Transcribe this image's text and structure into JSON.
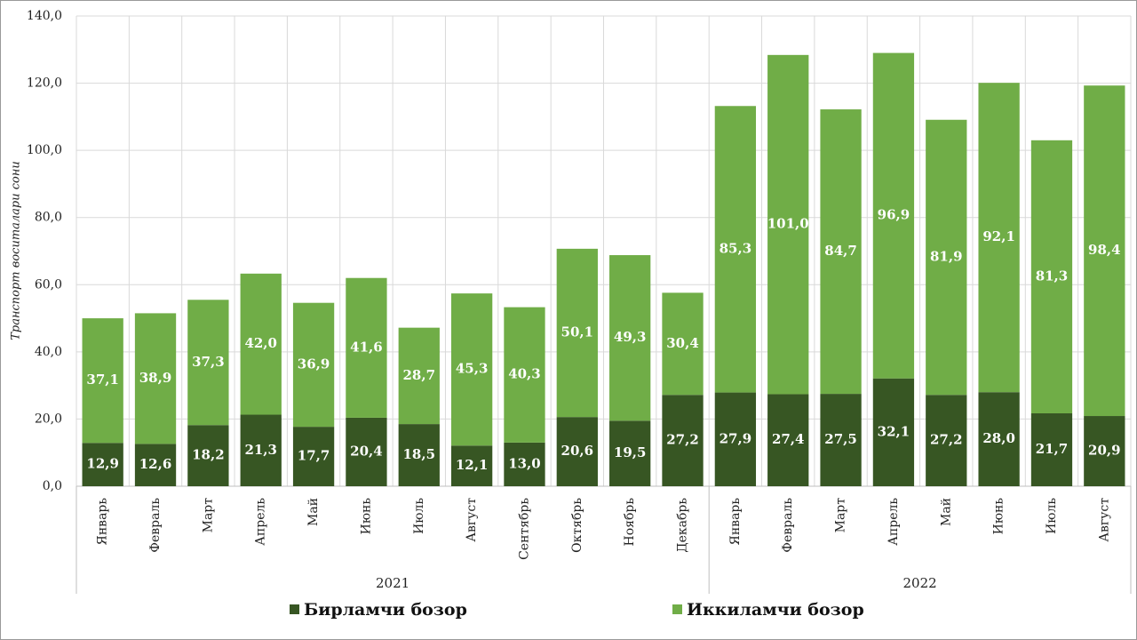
{
  "chart_data": {
    "type": "stacked_bar",
    "y_label": "Транспорт воситалари сони",
    "groups": [
      {
        "name": "2021",
        "categories": [
          "Январь",
          "Февраль",
          "Март",
          "Апрель",
          "Май",
          "Июнь",
          "Июль",
          "Август",
          "Сентябрь",
          "Октябрь",
          "Ноябрь",
          "Декабрь"
        ]
      },
      {
        "name": "2022",
        "categories": [
          "Январь",
          "Февраль",
          "Март",
          "Апрель",
          "Май",
          "Июнь",
          "Июль",
          "Август"
        ]
      }
    ],
    "series": [
      {
        "name": "Бирламчи бозор",
        "color": "#375623",
        "values": [
          12.9,
          12.6,
          18.2,
          21.3,
          17.7,
          20.4,
          18.5,
          12.1,
          13.0,
          20.6,
          19.5,
          27.2,
          27.9,
          27.4,
          27.5,
          32.1,
          27.2,
          28.0,
          21.7,
          20.9
        ],
        "value_labels": [
          "12,9",
          "12,6",
          "18,2",
          "21,3",
          "17,7",
          "20,4",
          "18,5",
          "12,1",
          "13,0",
          "20,6",
          "19,5",
          "27,2",
          "27,9",
          "27,4",
          "27,5",
          "32,1",
          "27,2",
          "28,0",
          "21,7",
          "20,9"
        ]
      },
      {
        "name": "Иккиламчи бозор",
        "color": "#70ad47",
        "values": [
          37.1,
          38.9,
          37.3,
          42.0,
          36.9,
          41.6,
          28.7,
          45.3,
          40.3,
          50.1,
          49.3,
          30.4,
          85.3,
          101.0,
          84.7,
          96.9,
          81.9,
          92.1,
          81.3,
          98.4
        ],
        "value_labels": [
          "37,1",
          "38,9",
          "37,3",
          "42,0",
          "36,9",
          "41,6",
          "28,7",
          "45,3",
          "40,3",
          "50,1",
          "49,3",
          "30,4",
          "85,3",
          "101,0",
          "84,7",
          "96,9",
          "81,9",
          "92,1",
          "81,3",
          "98,4"
        ]
      }
    ],
    "ylim": [
      0,
      140
    ],
    "yticks": [
      {
        "value": 0,
        "label": "0,0"
      },
      {
        "value": 20,
        "label": "20,0"
      },
      {
        "value": 40,
        "label": "40,0"
      },
      {
        "value": 60,
        "label": "60,0"
      },
      {
        "value": 80,
        "label": "80,0"
      },
      {
        "value": 100,
        "label": "100,0"
      },
      {
        "value": 120,
        "label": "120,0"
      },
      {
        "value": 140,
        "label": "140,0"
      }
    ],
    "grid": true,
    "legend": "bottom"
  }
}
